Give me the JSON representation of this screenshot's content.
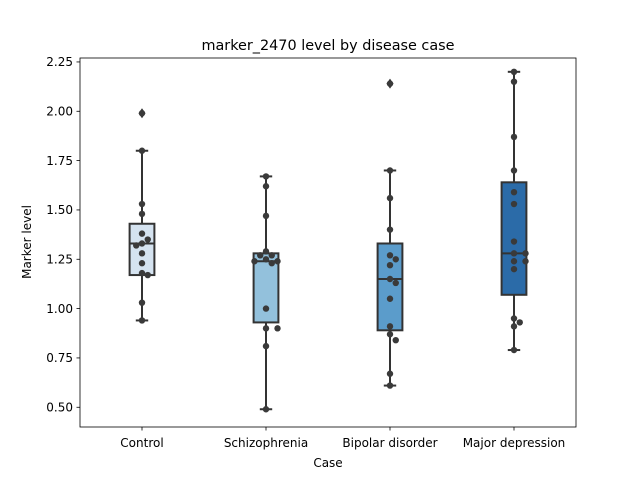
{
  "chart_data": {
    "type": "box",
    "title": "marker_2470 level by disease case",
    "xlabel": "Case",
    "ylabel": "Marker level",
    "ylim": [
      0.4,
      2.27
    ],
    "yticks": [
      0.5,
      0.75,
      1.0,
      1.25,
      1.5,
      1.75,
      2.0,
      2.25
    ],
    "ytick_labels": [
      "0.50",
      "0.75",
      "1.00",
      "1.25",
      "1.50",
      "1.75",
      "2.00",
      "2.25"
    ],
    "grid": false,
    "categories": [
      "Control",
      "Schizophrenia",
      "Bipolar disorder",
      "Major depression"
    ],
    "colors": [
      "#d5e3f0",
      "#93c1dc",
      "#5b9ccb",
      "#2b6ba8"
    ],
    "boxes": [
      {
        "category": "Control",
        "whisker_low": 0.94,
        "q1": 1.17,
        "median": 1.33,
        "q3": 1.43,
        "whisker_high": 1.8,
        "outliers": [
          1.99
        ]
      },
      {
        "category": "Schizophrenia",
        "whisker_low": 0.49,
        "q1": 0.93,
        "median": 1.24,
        "q3": 1.28,
        "whisker_high": 1.67,
        "outliers": []
      },
      {
        "category": "Bipolar disorder",
        "whisker_low": 0.61,
        "q1": 0.89,
        "median": 1.15,
        "q3": 1.33,
        "whisker_high": 1.7,
        "outliers": [
          2.14
        ]
      },
      {
        "category": "Major depression",
        "whisker_low": 0.79,
        "q1": 1.07,
        "median": 1.28,
        "q3": 1.64,
        "whisker_high": 2.2,
        "outliers": []
      }
    ],
    "points": [
      [
        1.99,
        1.8,
        1.53,
        1.48,
        1.38,
        1.35,
        1.33,
        1.32,
        1.28,
        1.23,
        1.18,
        1.17,
        1.03,
        0.94
      ],
      [
        1.67,
        1.62,
        1.47,
        1.29,
        1.27,
        1.27,
        1.25,
        1.24,
        1.24,
        1.23,
        1.0,
        0.9,
        0.9,
        0.81,
        0.49
      ],
      [
        2.14,
        1.7,
        1.56,
        1.4,
        1.27,
        1.25,
        1.22,
        1.15,
        1.13,
        1.05,
        0.91,
        0.87,
        0.84,
        0.67,
        0.61
      ],
      [
        2.2,
        2.15,
        1.87,
        1.7,
        1.59,
        1.53,
        1.34,
        1.28,
        1.28,
        1.24,
        1.24,
        1.2,
        0.95,
        0.93,
        0.91,
        0.79
      ]
    ]
  }
}
